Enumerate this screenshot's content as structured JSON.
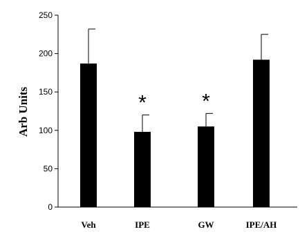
{
  "chart_data": {
    "type": "bar",
    "title": "",
    "xlabel": "",
    "ylabel": "Arb Units",
    "ylim": [
      0,
      250
    ],
    "yticks": [
      0,
      50,
      100,
      150,
      200,
      250
    ],
    "categories": [
      "Veh",
      "IPE",
      "GW",
      "IPE/AH"
    ],
    "values": [
      187,
      98,
      105,
      192
    ],
    "error_plus": [
      45,
      22,
      17,
      33
    ],
    "significance": [
      "",
      "*",
      "*",
      ""
    ],
    "bar_color": "#000000",
    "grid": false,
    "legend": "none"
  }
}
